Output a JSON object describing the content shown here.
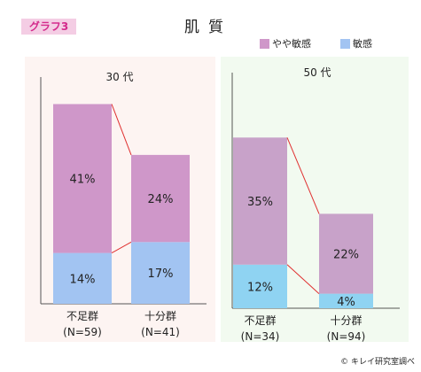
{
  "header": {
    "badge": "グラフ3",
    "title": "肌質"
  },
  "colors": {
    "somewhat": "#cf97c9",
    "sensitive": "#a2c4f2",
    "connector": "#e03030"
  },
  "chart_data": [
    {
      "type": "bar",
      "stacked": true,
      "title": "30 代",
      "categories": [
        "不足群",
        "十分群"
      ],
      "category_n": [
        "(N=59)",
        "(N=41)"
      ],
      "series": [
        {
          "name": "敏感",
          "values": [
            14,
            17
          ],
          "labels": [
            "14%",
            "17%"
          ],
          "color": "#a2c4f2"
        },
        {
          "name": "やや敏感",
          "values": [
            41,
            24
          ],
          "labels": [
            "41%",
            "24%"
          ],
          "color": "#cf97c9"
        }
      ],
      "ylim": [
        0,
        64
      ],
      "grid": false,
      "legend": "top-right",
      "background": "#fdf4f2"
    },
    {
      "type": "bar",
      "stacked": true,
      "title": "50 代",
      "categories": [
        "不足群",
        "十分群"
      ],
      "category_n": [
        "(N=34)",
        "(N=94)"
      ],
      "series": [
        {
          "name": "敏感",
          "values": [
            12,
            4
          ],
          "labels": [
            "12%",
            "4%"
          ],
          "color": "#8fd3f2"
        },
        {
          "name": "やや敏感",
          "values": [
            35,
            22
          ],
          "labels": [
            "35%",
            "22%"
          ],
          "color": "#c8a2c9"
        }
      ],
      "ylim": [
        0,
        64
      ],
      "grid": false,
      "legend": "top-right",
      "background": "#f2faf0"
    }
  ],
  "legend": {
    "items": [
      {
        "name": "やや敏感",
        "color": "#cf97c9"
      },
      {
        "name": "敏感",
        "color": "#a2c4f2"
      }
    ]
  },
  "credit": "© キレイ研究室調べ"
}
